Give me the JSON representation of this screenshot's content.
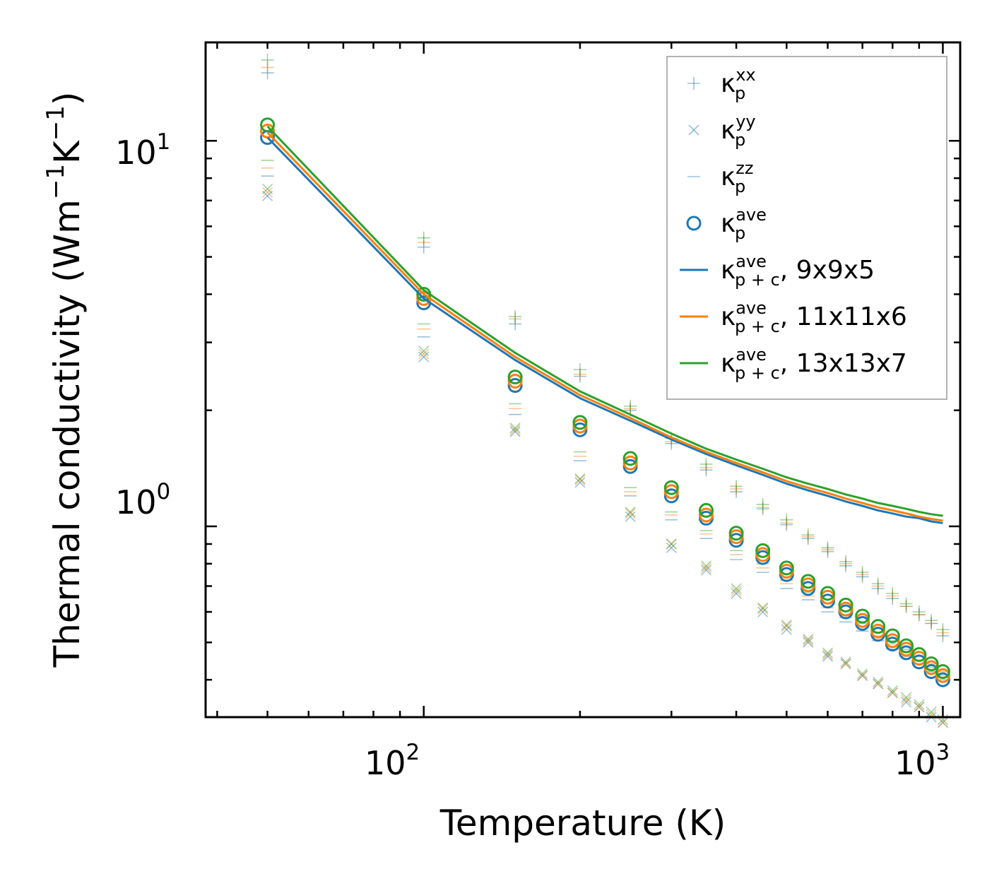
{
  "chart_data": {
    "type": "scatter",
    "xscale": "log",
    "yscale": "log",
    "xlabel": "Temperature (K)",
    "ylabel": {
      "main": "Thermal conductivity (Wm",
      "sup1": "−1",
      "mid": "K",
      "sup2": "−1",
      "end": ")"
    },
    "xlim": [
      38,
      1080
    ],
    "ylim": [
      0.32,
      18
    ],
    "x_ticks": [
      {
        "value": 100,
        "base": "10",
        "exp": "2"
      },
      {
        "value": 1000,
        "base": "10",
        "exp": "3"
      }
    ],
    "y_ticks": [
      {
        "value": 1,
        "base": "10",
        "exp": "0"
      },
      {
        "value": 10,
        "base": "10",
        "exp": "1"
      }
    ],
    "x": [
      50,
      100,
      150,
      200,
      250,
      300,
      350,
      400,
      450,
      500,
      550,
      600,
      650,
      700,
      750,
      800,
      850,
      900,
      950,
      1000
    ],
    "colors": {
      "blue": "#1f77b4",
      "orange": "#ff7f0e",
      "green": "#2ca02c"
    },
    "scatter_series": [
      {
        "name": "κp^xx (9x9x5)",
        "marker": "plus",
        "color": "blue",
        "values": [
          15.0,
          5.3,
          3.35,
          2.45,
          2.0,
          1.64,
          1.4,
          1.23,
          1.11,
          1.01,
          0.93,
          0.86,
          0.79,
          0.74,
          0.69,
          0.65,
          0.62,
          0.59,
          0.56,
          0.52
        ]
      },
      {
        "name": "κp^xx (11x11x6)",
        "marker": "plus",
        "color": "orange",
        "values": [
          15.5,
          5.45,
          3.45,
          2.48,
          2.02,
          1.66,
          1.42,
          1.25,
          1.12,
          1.02,
          0.94,
          0.87,
          0.8,
          0.75,
          0.7,
          0.66,
          0.62,
          0.59,
          0.56,
          0.53
        ]
      },
      {
        "name": "κp^xx (13x13x7)",
        "marker": "plus",
        "color": "green",
        "values": [
          16.2,
          5.6,
          3.5,
          2.55,
          2.05,
          1.69,
          1.45,
          1.27,
          1.14,
          1.04,
          0.95,
          0.88,
          0.81,
          0.76,
          0.71,
          0.67,
          0.63,
          0.6,
          0.57,
          0.54
        ]
      },
      {
        "name": "κp^yy (9x9x5)",
        "marker": "cross",
        "color": "blue",
        "values": [
          7.2,
          2.75,
          1.76,
          1.3,
          1.06,
          0.88,
          0.77,
          0.67,
          0.6,
          0.54,
          0.5,
          0.46,
          0.44,
          0.41,
          0.39,
          0.37,
          0.35,
          0.34,
          0.32,
          0.31
        ]
      },
      {
        "name": "κp^yy (11x11x6)",
        "marker": "cross",
        "color": "orange",
        "values": [
          7.35,
          2.8,
          1.78,
          1.32,
          1.08,
          0.9,
          0.78,
          0.68,
          0.61,
          0.55,
          0.505,
          0.465,
          0.44,
          0.41,
          0.39,
          0.37,
          0.355,
          0.34,
          0.325,
          0.31
        ]
      },
      {
        "name": "κp^yy (13x13x7)",
        "marker": "cross",
        "color": "green",
        "values": [
          7.5,
          2.85,
          1.8,
          1.33,
          1.09,
          0.9,
          0.79,
          0.69,
          0.615,
          0.555,
          0.51,
          0.47,
          0.445,
          0.415,
          0.395,
          0.375,
          0.36,
          0.345,
          0.33,
          0.315
        ]
      },
      {
        "name": "κp^zz (9x9x5)",
        "marker": "dash",
        "color": "blue",
        "values": [
          8.1,
          3.1,
          1.95,
          1.48,
          1.2,
          1.04,
          0.93,
          0.82,
          0.76,
          0.69,
          0.645,
          0.6,
          0.565,
          0.535,
          0.505,
          0.48,
          0.46,
          0.44,
          0.42,
          0.4
        ]
      },
      {
        "name": "κp^zz (11x11x6)",
        "marker": "dash",
        "color": "orange",
        "values": [
          8.5,
          3.25,
          2.02,
          1.52,
          1.23,
          1.07,
          0.955,
          0.845,
          0.78,
          0.71,
          0.66,
          0.615,
          0.58,
          0.55,
          0.52,
          0.495,
          0.47,
          0.45,
          0.43,
          0.41
        ]
      },
      {
        "name": "κp^zz (13x13x7)",
        "marker": "dash",
        "color": "green",
        "values": [
          8.9,
          3.35,
          2.08,
          1.56,
          1.26,
          1.09,
          0.975,
          0.865,
          0.8,
          0.725,
          0.675,
          0.63,
          0.59,
          0.56,
          0.53,
          0.505,
          0.48,
          0.46,
          0.44,
          0.42
        ]
      },
      {
        "name": "κp^ave (9x9x5)",
        "marker": "circle",
        "color": "blue",
        "values": [
          10.2,
          3.8,
          2.32,
          1.78,
          1.43,
          1.2,
          1.05,
          0.92,
          0.83,
          0.75,
          0.69,
          0.64,
          0.6,
          0.56,
          0.525,
          0.495,
          0.47,
          0.445,
          0.42,
          0.4
        ]
      },
      {
        "name": "κp^ave (11x11x6)",
        "marker": "circle",
        "color": "orange",
        "values": [
          10.6,
          3.9,
          2.38,
          1.82,
          1.46,
          1.23,
          1.07,
          0.94,
          0.845,
          0.765,
          0.705,
          0.655,
          0.61,
          0.57,
          0.535,
          0.505,
          0.48,
          0.455,
          0.43,
          0.41
        ]
      },
      {
        "name": "κp^ave (13x13x7)",
        "marker": "circle",
        "color": "green",
        "values": [
          11.0,
          4.0,
          2.44,
          1.86,
          1.5,
          1.26,
          1.1,
          0.96,
          0.865,
          0.78,
          0.72,
          0.67,
          0.625,
          0.585,
          0.55,
          0.52,
          0.49,
          0.465,
          0.44,
          0.42
        ]
      }
    ],
    "line_series": [
      {
        "name": "κp+c^ave, 9x9x5",
        "color": "blue",
        "values": [
          10.2,
          3.9,
          2.7,
          2.15,
          1.88,
          1.68,
          1.54,
          1.44,
          1.36,
          1.29,
          1.24,
          1.2,
          1.16,
          1.13,
          1.1,
          1.08,
          1.06,
          1.05,
          1.03,
          1.02
        ]
      },
      {
        "name": "κp+c^ave, 11x11x6",
        "color": "orange",
        "values": [
          10.5,
          4.0,
          2.75,
          2.19,
          1.91,
          1.7,
          1.56,
          1.46,
          1.38,
          1.31,
          1.26,
          1.22,
          1.18,
          1.15,
          1.12,
          1.1,
          1.08,
          1.06,
          1.045,
          1.035
        ]
      },
      {
        "name": "κp+c^ave, 13x13x7",
        "color": "green",
        "values": [
          10.9,
          4.1,
          2.82,
          2.24,
          1.95,
          1.74,
          1.59,
          1.49,
          1.41,
          1.34,
          1.29,
          1.25,
          1.21,
          1.18,
          1.15,
          1.13,
          1.11,
          1.09,
          1.075,
          1.065
        ]
      }
    ],
    "legend": {
      "position": "upper-right",
      "entries": [
        {
          "marker": "plus",
          "color": "blue",
          "base": "κ",
          "sub": "p",
          "sup": "xx",
          "suffix": ""
        },
        {
          "marker": "cross",
          "color": "blue",
          "base": "κ",
          "sub": "p",
          "sup": "yy",
          "suffix": ""
        },
        {
          "marker": "dash",
          "color": "blue",
          "base": "κ",
          "sub": "p",
          "sup": "zz",
          "suffix": ""
        },
        {
          "marker": "circle",
          "color": "blue",
          "base": "κ",
          "sub": "p",
          "sup": "ave",
          "suffix": ""
        },
        {
          "marker": "line",
          "color": "blue",
          "base": "κ",
          "sub": "p + c",
          "sup": "ave",
          "suffix": ", 9x9x5"
        },
        {
          "marker": "line",
          "color": "orange",
          "base": "κ",
          "sub": "p + c",
          "sup": "ave",
          "suffix": ", 11x11x6"
        },
        {
          "marker": "line",
          "color": "green",
          "base": "κ",
          "sub": "p + c",
          "sup": "ave",
          "suffix": ", 13x13x7"
        }
      ]
    }
  }
}
